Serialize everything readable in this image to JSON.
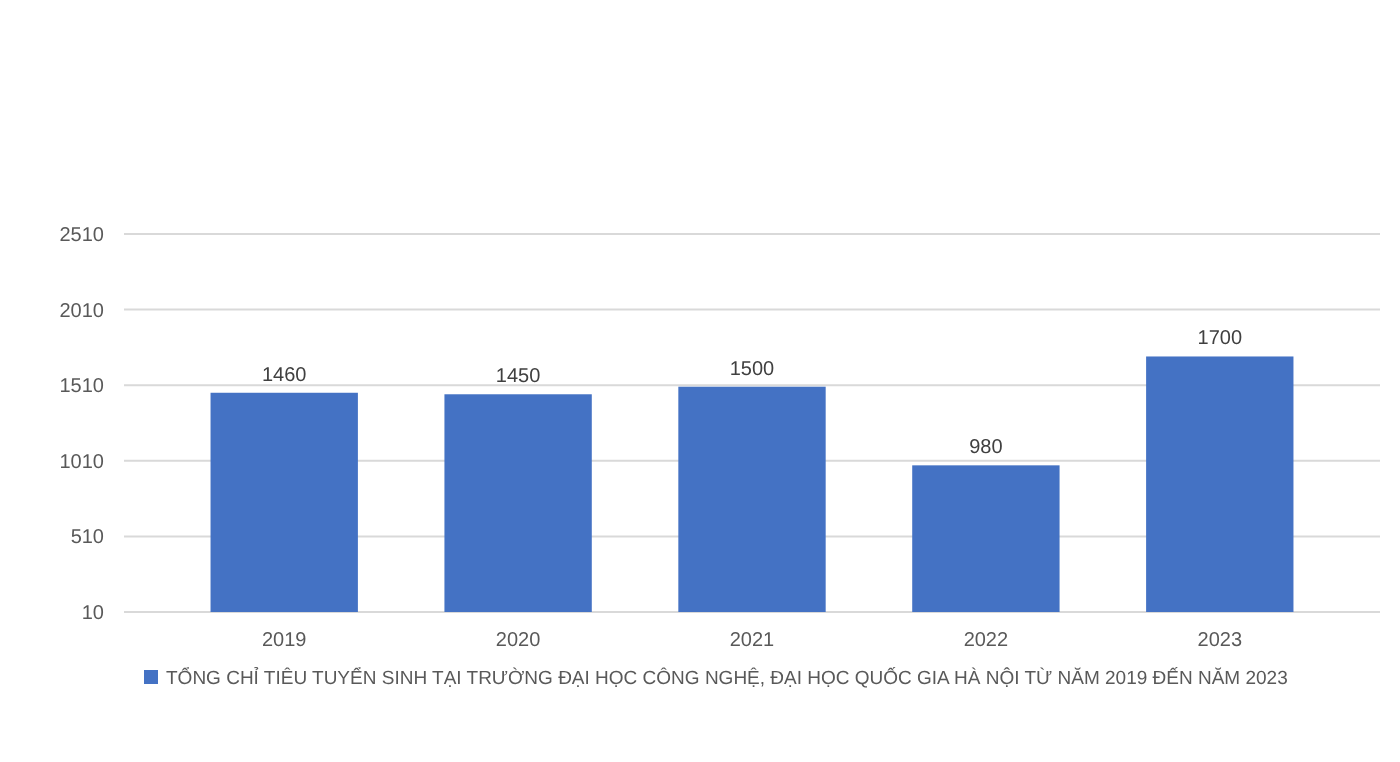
{
  "chart_data": {
    "type": "bar",
    "categories": [
      "2019",
      "2020",
      "2021",
      "2022",
      "2023"
    ],
    "series": [
      {
        "name": "TỔNG CHỈ TIÊU TUYỂN SINH TẠI TRƯỜNG ĐẠI HỌC CÔNG NGHỆ, ĐẠI HỌC QUỐC GIA HÀ NỘI TỪ NĂM 2019 ĐẾN NĂM 2023",
        "color": "#4472c4",
        "values": [
          1460,
          1450,
          1500,
          980,
          1700
        ]
      }
    ],
    "ylim": [
      10,
      2510
    ],
    "yticks": [
      10,
      510,
      1010,
      1510,
      2010,
      2510
    ],
    "grid": "y",
    "data_labels": true,
    "legend": "bottom"
  }
}
